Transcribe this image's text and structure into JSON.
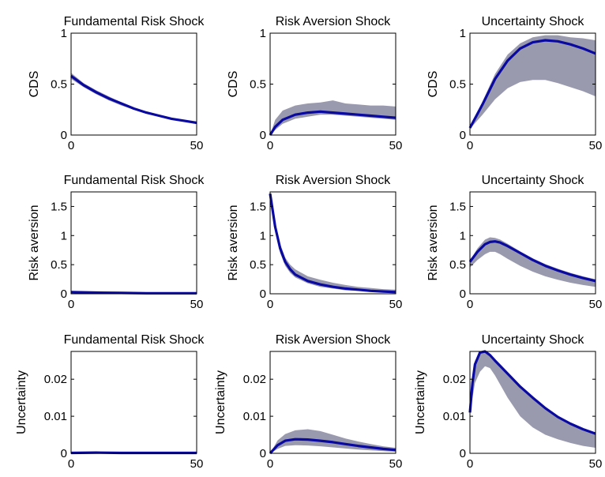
{
  "figure": {
    "row_ylabels": [
      "CDS",
      "Risk aversion",
      "Uncertainty"
    ],
    "band_color": "#9a9aaf",
    "line_color": "#0a0aa0"
  },
  "chart_data": [
    {
      "type": "line",
      "title": "Fundamental Risk Shock",
      "ylabel": "CDS",
      "xlim": [
        0,
        50
      ],
      "ylim": [
        0,
        1
      ],
      "xticks": [
        0,
        50
      ],
      "yticks": [
        0,
        0.5,
        1
      ],
      "ytick_labels": [
        "0",
        "0.5",
        "1"
      ],
      "x": [
        0,
        5,
        10,
        15,
        20,
        25,
        30,
        35,
        40,
        45,
        50
      ],
      "series": [
        {
          "role": "line",
          "values": [
            0.58,
            0.49,
            0.42,
            0.36,
            0.31,
            0.26,
            0.22,
            0.19,
            0.16,
            0.14,
            0.12
          ]
        },
        {
          "role": "band_upper",
          "values": [
            0.61,
            0.51,
            0.44,
            0.38,
            0.32,
            0.27,
            0.23,
            0.2,
            0.17,
            0.15,
            0.13
          ]
        },
        {
          "role": "band_lower",
          "values": [
            0.55,
            0.47,
            0.4,
            0.34,
            0.29,
            0.25,
            0.21,
            0.18,
            0.15,
            0.13,
            0.11
          ]
        }
      ]
    },
    {
      "type": "line",
      "title": "Risk Aversion Shock",
      "ylabel": "CDS",
      "xlim": [
        0,
        50
      ],
      "ylim": [
        0,
        1
      ],
      "xticks": [
        0,
        50
      ],
      "yticks": [
        0,
        0.5,
        1
      ],
      "ytick_labels": [
        "0",
        "0.5",
        "1"
      ],
      "x": [
        0,
        2,
        5,
        10,
        15,
        20,
        25,
        30,
        35,
        40,
        45,
        50
      ],
      "series": [
        {
          "role": "line",
          "values": [
            0.0,
            0.08,
            0.15,
            0.2,
            0.22,
            0.23,
            0.22,
            0.21,
            0.2,
            0.19,
            0.18,
            0.17
          ]
        },
        {
          "role": "band_upper",
          "values": [
            0.0,
            0.15,
            0.24,
            0.29,
            0.31,
            0.32,
            0.34,
            0.31,
            0.3,
            0.29,
            0.29,
            0.28
          ]
        },
        {
          "role": "band_lower",
          "values": [
            0.0,
            0.05,
            0.11,
            0.16,
            0.18,
            0.2,
            0.2,
            0.19,
            0.18,
            0.17,
            0.16,
            0.15
          ]
        }
      ]
    },
    {
      "type": "line",
      "title": "Uncertainty Shock",
      "ylabel": "CDS",
      "xlim": [
        0,
        50
      ],
      "ylim": [
        0,
        1
      ],
      "xticks": [
        0,
        50
      ],
      "yticks": [
        0,
        0.5,
        1
      ],
      "ytick_labels": [
        "0",
        "0.5",
        "1"
      ],
      "x": [
        0,
        5,
        10,
        15,
        20,
        25,
        30,
        35,
        40,
        45,
        50
      ],
      "series": [
        {
          "role": "line",
          "values": [
            0.07,
            0.3,
            0.55,
            0.73,
            0.85,
            0.91,
            0.93,
            0.92,
            0.89,
            0.85,
            0.8
          ]
        },
        {
          "role": "band_upper",
          "values": [
            0.08,
            0.33,
            0.6,
            0.79,
            0.9,
            0.96,
            0.98,
            0.98,
            0.96,
            0.95,
            0.93
          ]
        },
        {
          "role": "band_lower",
          "values": [
            0.06,
            0.2,
            0.35,
            0.46,
            0.52,
            0.54,
            0.54,
            0.51,
            0.47,
            0.43,
            0.38
          ]
        }
      ]
    },
    {
      "type": "line",
      "title": "Fundamental Risk Shock",
      "ylabel": "Risk aversion",
      "xlim": [
        0,
        50
      ],
      "ylim": [
        0,
        1.75
      ],
      "xticks": [
        0,
        50
      ],
      "yticks": [
        0,
        0.5,
        1,
        1.5
      ],
      "ytick_labels": [
        "0",
        "0.5",
        "1",
        "1.5"
      ],
      "x": [
        0,
        10,
        20,
        30,
        40,
        50
      ],
      "series": [
        {
          "role": "line",
          "values": [
            0.03,
            0.02,
            0.015,
            0.01,
            0.01,
            0.01
          ]
        },
        {
          "role": "band_upper",
          "values": [
            0.04,
            0.03,
            0.02,
            0.015,
            0.012,
            0.012
          ]
        },
        {
          "role": "band_lower",
          "values": [
            0.02,
            0.015,
            0.01,
            0.008,
            0.008,
            0.008
          ]
        }
      ]
    },
    {
      "type": "line",
      "title": "Risk Aversion Shock",
      "ylabel": "Risk aversion",
      "xlim": [
        0,
        50
      ],
      "ylim": [
        0,
        1.75
      ],
      "xticks": [
        0,
        50
      ],
      "yticks": [
        0,
        0.5,
        1,
        1.5
      ],
      "ytick_labels": [
        "0",
        "0.5",
        "1",
        "1.5"
      ],
      "x": [
        0,
        2,
        4,
        6,
        8,
        10,
        15,
        20,
        25,
        30,
        35,
        40,
        45,
        50
      ],
      "series": [
        {
          "role": "line",
          "values": [
            1.72,
            1.15,
            0.78,
            0.55,
            0.42,
            0.33,
            0.22,
            0.16,
            0.12,
            0.09,
            0.07,
            0.05,
            0.04,
            0.03
          ]
        },
        {
          "role": "band_upper",
          "values": [
            1.74,
            1.22,
            0.86,
            0.62,
            0.5,
            0.42,
            0.3,
            0.24,
            0.19,
            0.15,
            0.12,
            0.1,
            0.08,
            0.07
          ]
        },
        {
          "role": "band_lower",
          "values": [
            1.7,
            1.1,
            0.7,
            0.48,
            0.36,
            0.28,
            0.18,
            0.12,
            0.09,
            0.06,
            0.05,
            0.04,
            0.03,
            0.02
          ]
        }
      ]
    },
    {
      "type": "line",
      "title": "Uncertainty Shock",
      "ylabel": "Risk aversion",
      "xlim": [
        0,
        50
      ],
      "ylim": [
        0,
        1.75
      ],
      "xticks": [
        0,
        50
      ],
      "yticks": [
        0,
        0.5,
        1,
        1.5
      ],
      "ytick_labels": [
        "0",
        "0.5",
        "1",
        "1.5"
      ],
      "x": [
        0,
        3,
        6,
        8,
        10,
        12,
        15,
        20,
        25,
        30,
        35,
        40,
        45,
        50
      ],
      "series": [
        {
          "role": "line",
          "values": [
            0.55,
            0.72,
            0.85,
            0.89,
            0.9,
            0.88,
            0.82,
            0.7,
            0.58,
            0.48,
            0.4,
            0.33,
            0.27,
            0.22
          ]
        },
        {
          "role": "band_upper",
          "values": [
            0.57,
            0.78,
            0.93,
            0.97,
            0.96,
            0.93,
            0.86,
            0.73,
            0.61,
            0.51,
            0.43,
            0.36,
            0.3,
            0.25
          ]
        },
        {
          "role": "band_lower",
          "values": [
            0.45,
            0.58,
            0.68,
            0.72,
            0.72,
            0.68,
            0.6,
            0.48,
            0.38,
            0.3,
            0.24,
            0.19,
            0.15,
            0.12
          ]
        }
      ]
    },
    {
      "type": "line",
      "title": "Fundamental Risk Shock",
      "ylabel": "Uncertainty",
      "xlim": [
        0,
        50
      ],
      "ylim": [
        0,
        0.0275
      ],
      "xticks": [
        0,
        50
      ],
      "yticks": [
        0,
        0.01,
        0.02
      ],
      "ytick_labels": [
        "0",
        "0.01",
        "0.02"
      ],
      "x": [
        0,
        10,
        20,
        30,
        40,
        50
      ],
      "series": [
        {
          "role": "line",
          "values": [
            0.0001,
            0.0002,
            0.0001,
            0.0001,
            0.0001,
            0.0001
          ]
        },
        {
          "role": "band_upper",
          "values": [
            0.0002,
            0.0003,
            0.0002,
            0.0002,
            0.0001,
            0.0001
          ]
        },
        {
          "role": "band_lower",
          "values": [
            0.0,
            0.0001,
            0.0001,
            0.0,
            0.0,
            0.0
          ]
        }
      ]
    },
    {
      "type": "line",
      "title": "Risk Aversion Shock",
      "ylabel": "Uncertainty",
      "xlim": [
        0,
        50
      ],
      "ylim": [
        0,
        0.0275
      ],
      "xticks": [
        0,
        50
      ],
      "yticks": [
        0,
        0.01,
        0.02
      ],
      "ytick_labels": [
        "0",
        "0.01",
        "0.02"
      ],
      "x": [
        0,
        3,
        6,
        10,
        15,
        20,
        25,
        30,
        35,
        40,
        45,
        50
      ],
      "series": [
        {
          "role": "line",
          "values": [
            0.0,
            0.0022,
            0.0034,
            0.0038,
            0.0037,
            0.0034,
            0.003,
            0.0025,
            0.002,
            0.0016,
            0.0012,
            0.0009
          ]
        },
        {
          "role": "band_upper",
          "values": [
            0.0,
            0.0035,
            0.0052,
            0.0062,
            0.0065,
            0.006,
            0.005,
            0.004,
            0.0032,
            0.0025,
            0.0019,
            0.0015
          ]
        },
        {
          "role": "band_lower",
          "values": [
            0.0,
            0.0012,
            0.002,
            0.0022,
            0.0021,
            0.0019,
            0.0016,
            0.0013,
            0.001,
            0.0008,
            0.0006,
            0.0004
          ]
        }
      ]
    },
    {
      "type": "line",
      "title": "Uncertainty Shock",
      "ylabel": "Uncertainty",
      "xlim": [
        0,
        50
      ],
      "ylim": [
        0,
        0.0275
      ],
      "xticks": [
        0,
        50
      ],
      "yticks": [
        0,
        0.01,
        0.02
      ],
      "ytick_labels": [
        "0",
        "0.01",
        "0.02"
      ],
      "x": [
        0,
        1,
        2,
        4,
        6,
        8,
        10,
        15,
        20,
        25,
        30,
        35,
        40,
        45,
        50
      ],
      "series": [
        {
          "role": "line",
          "values": [
            0.011,
            0.019,
            0.024,
            0.0272,
            0.0275,
            0.0265,
            0.025,
            0.0215,
            0.018,
            0.015,
            0.0122,
            0.0098,
            0.008,
            0.0065,
            0.0053
          ]
        },
        {
          "role": "band_upper",
          "values": [
            0.011,
            0.02,
            0.025,
            0.027,
            0.0272,
            0.0262,
            0.0248,
            0.0212,
            0.0178,
            0.0148,
            0.012,
            0.0097,
            0.0078,
            0.0062,
            0.005
          ]
        },
        {
          "role": "band_lower",
          "values": [
            0.011,
            0.015,
            0.019,
            0.022,
            0.0235,
            0.023,
            0.021,
            0.015,
            0.01,
            0.007,
            0.005,
            0.0038,
            0.0028,
            0.002,
            0.0015
          ]
        }
      ]
    }
  ]
}
